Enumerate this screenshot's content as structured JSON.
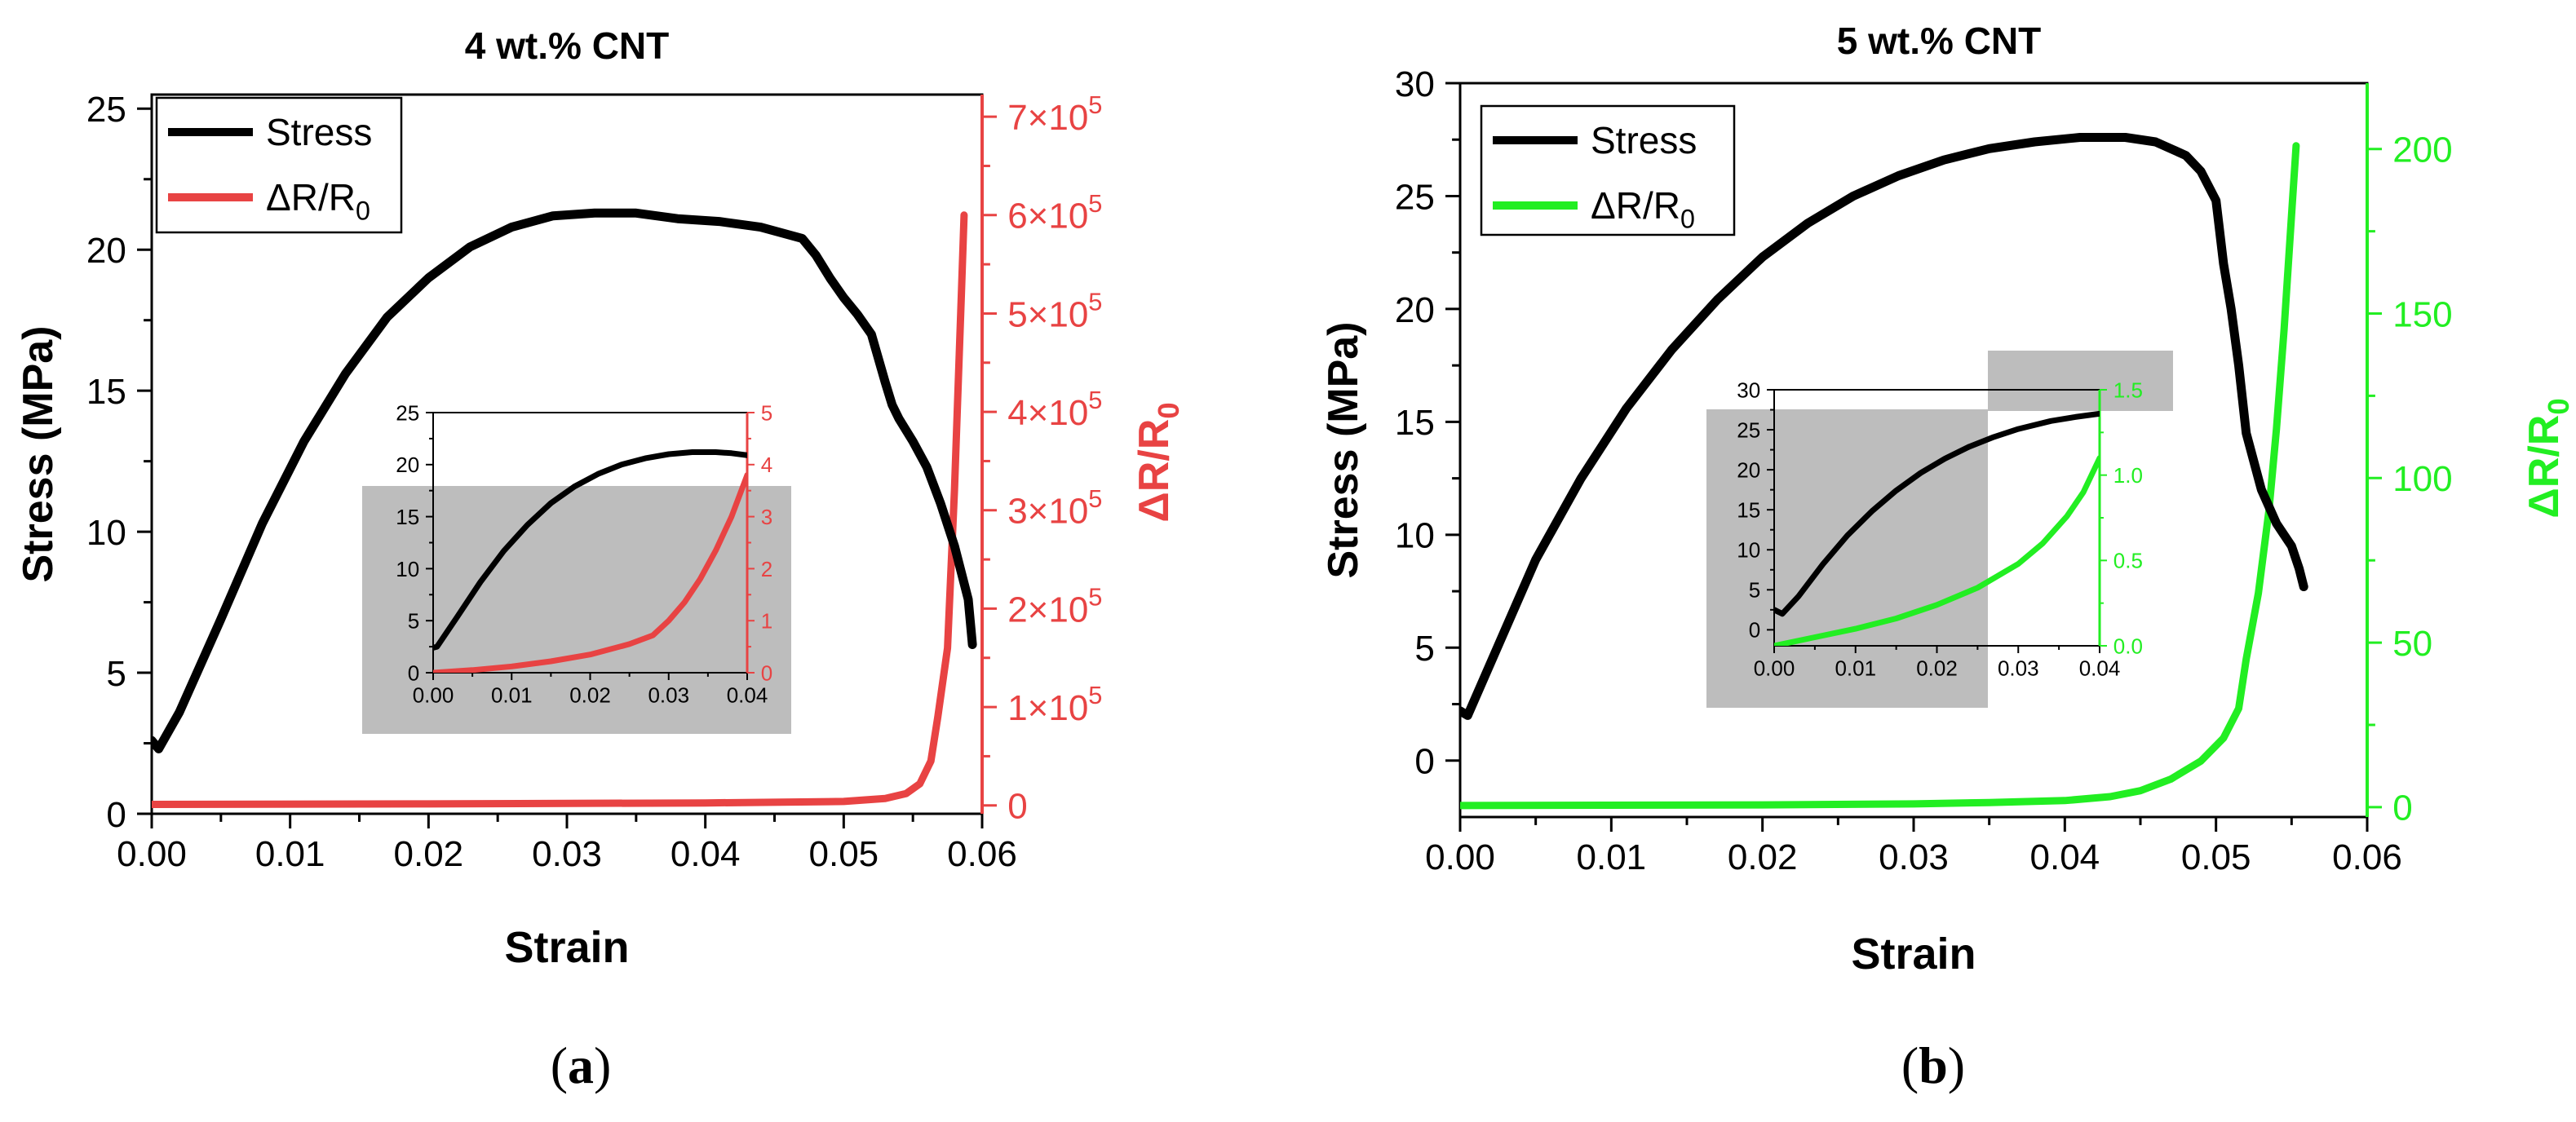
{
  "chart_data": [
    {
      "type": "line",
      "panel_label": "(a)",
      "title": "4 wt.% CNT",
      "xlabel": "Strain",
      "ylabel": "Stress (MPa)",
      "y2label": "ΔR/R0",
      "xlim": [
        0,
        0.06
      ],
      "ylim": [
        0,
        25.5
      ],
      "y2lim": [
        -8500,
        722500
      ],
      "xticks": [
        "0.00",
        "0.01",
        "0.02",
        "0.03",
        "0.04",
        "0.05",
        "0.06"
      ],
      "yticks": [
        "0",
        "5",
        "10",
        "15",
        "20",
        "25"
      ],
      "y2ticks": [
        "0",
        "1×10⁵",
        "2×10⁵",
        "3×10⁵",
        "4×10⁵",
        "5×10⁵",
        "6×10⁵",
        "7×10⁵"
      ],
      "legend": {
        "position": "top-left",
        "entries": [
          "Stress",
          "ΔR/R0"
        ]
      },
      "series": [
        {
          "name": "Stress",
          "color": "#000000",
          "axis": "left",
          "x": [
            0.0,
            0.0005,
            0.002,
            0.005,
            0.008,
            0.011,
            0.014,
            0.017,
            0.02,
            0.023,
            0.026,
            0.029,
            0.032,
            0.035,
            0.038,
            0.041,
            0.044,
            0.047,
            0.048,
            0.049,
            0.05,
            0.051,
            0.052,
            0.053,
            0.0535,
            0.054,
            0.055,
            0.056,
            0.057,
            0.058,
            0.059,
            0.0593
          ],
          "y": [
            2.6,
            2.3,
            3.6,
            6.9,
            10.3,
            13.2,
            15.6,
            17.6,
            19.0,
            20.1,
            20.8,
            21.2,
            21.3,
            21.3,
            21.1,
            21.0,
            20.8,
            20.4,
            19.8,
            19.0,
            18.3,
            17.7,
            17.0,
            15.3,
            14.5,
            14.0,
            13.2,
            12.3,
            11.0,
            9.5,
            7.6,
            6.0
          ]
        },
        {
          "name": "ΔR/R0",
          "color": "#e84343",
          "axis": "right",
          "x": [
            0.0,
            0.02,
            0.04,
            0.05,
            0.053,
            0.0545,
            0.0555,
            0.0563,
            0.0568,
            0.0575,
            0.058,
            0.0585,
            0.0587
          ],
          "y": [
            1000,
            1500,
            2500,
            4000,
            7000,
            12000,
            22000,
            45000,
            90000,
            160000,
            320000,
            520000,
            600000
          ]
        }
      ],
      "inset": {
        "xlim": [
          0,
          0.04
        ],
        "ylim": [
          0,
          25
        ],
        "y2lim": [
          0,
          5
        ],
        "xticks": [
          "0.00",
          "0.01",
          "0.02",
          "0.03",
          "0.04"
        ],
        "yticks": [
          "0",
          "5",
          "10",
          "15",
          "20",
          "25"
        ],
        "y2ticks": [
          "0",
          "1",
          "2",
          "3",
          "4",
          "5"
        ],
        "series": [
          {
            "name": "Stress",
            "color": "#000000",
            "axis": "left",
            "x": [
              0.0,
              0.0005,
              0.003,
              0.006,
              0.009,
              0.012,
              0.015,
              0.018,
              0.021,
              0.024,
              0.027,
              0.03,
              0.033,
              0.036,
              0.038,
              0.04
            ],
            "y": [
              2.4,
              2.5,
              5.3,
              8.7,
              11.7,
              14.2,
              16.3,
              17.9,
              19.1,
              20.0,
              20.6,
              21.0,
              21.2,
              21.2,
              21.1,
              20.9
            ]
          },
          {
            "name": "ΔR/R0",
            "color": "#e84343",
            "axis": "right",
            "x": [
              0.0,
              0.005,
              0.01,
              0.015,
              0.02,
              0.025,
              0.028,
              0.03,
              0.032,
              0.034,
              0.036,
              0.038,
              0.04
            ],
            "y": [
              0.0,
              0.05,
              0.12,
              0.22,
              0.35,
              0.55,
              0.72,
              1.0,
              1.35,
              1.8,
              2.35,
              3.0,
              3.8
            ]
          }
        ]
      }
    },
    {
      "type": "line",
      "panel_label": "(b)",
      "title": "5 wt.% CNT",
      "xlabel": "Strain",
      "ylabel": "Stress (MPa)",
      "y2label": "ΔR/R0",
      "xlim": [
        0,
        0.06
      ],
      "ylim": [
        -2.5,
        30
      ],
      "y2lim": [
        -3,
        220
      ],
      "xticks": [
        "0.00",
        "0.01",
        "0.02",
        "0.03",
        "0.04",
        "0.05",
        "0.06"
      ],
      "yticks": [
        "0",
        "5",
        "10",
        "15",
        "20",
        "25",
        "30"
      ],
      "y2ticks": [
        "0",
        "50",
        "100",
        "150",
        "200"
      ],
      "legend": {
        "position": "top-left",
        "entries": [
          "Stress",
          "ΔR/R0"
        ]
      },
      "series": [
        {
          "name": "Stress",
          "color": "#000000",
          "axis": "left",
          "x": [
            0.0,
            0.0005,
            0.002,
            0.005,
            0.008,
            0.011,
            0.014,
            0.017,
            0.02,
            0.023,
            0.026,
            0.029,
            0.032,
            0.035,
            0.038,
            0.041,
            0.044,
            0.046,
            0.048,
            0.049,
            0.05,
            0.0505,
            0.051,
            0.0515,
            0.052,
            0.053,
            0.054,
            0.055,
            0.0555,
            0.0558
          ],
          "y": [
            2.2,
            2.0,
            4.3,
            8.9,
            12.5,
            15.6,
            18.2,
            20.4,
            22.3,
            23.8,
            25.0,
            25.9,
            26.6,
            27.1,
            27.4,
            27.6,
            27.6,
            27.4,
            26.8,
            26.1,
            24.8,
            22.0,
            20.0,
            17.5,
            14.5,
            12.0,
            10.5,
            9.5,
            8.5,
            7.7
          ]
        },
        {
          "name": "ΔR/R0",
          "color": "#22ee22",
          "axis": "right",
          "x": [
            0.0,
            0.02,
            0.03,
            0.035,
            0.04,
            0.043,
            0.045,
            0.047,
            0.049,
            0.0505,
            0.0515,
            0.052,
            0.0528,
            0.0535,
            0.054,
            0.0545,
            0.055,
            0.0553
          ],
          "y": [
            0.5,
            0.7,
            1.0,
            1.4,
            2.0,
            3.2,
            5.0,
            8.5,
            14.0,
            21.0,
            30.0,
            45.0,
            65.0,
            90.0,
            115.0,
            145.0,
            180.0,
            201.0
          ]
        }
      ],
      "inset": {
        "xlim": [
          0,
          0.04
        ],
        "ylim": [
          -2,
          30
        ],
        "y2lim": [
          0,
          1.5
        ],
        "xticks": [
          "0.00",
          "0.01",
          "0.02",
          "0.03",
          "0.04"
        ],
        "yticks": [
          "0",
          "5",
          "10",
          "15",
          "20",
          "25",
          "30"
        ],
        "y2ticks": [
          "0.0",
          "0.5",
          "1.0",
          "1.5"
        ],
        "series": [
          {
            "name": "Stress",
            "color": "#000000",
            "axis": "left",
            "x": [
              0.0,
              0.001,
              0.003,
              0.006,
              0.009,
              0.012,
              0.015,
              0.018,
              0.021,
              0.024,
              0.027,
              0.03,
              0.034,
              0.037,
              0.04
            ],
            "y": [
              2.5,
              2.0,
              4.2,
              8.2,
              11.8,
              14.8,
              17.4,
              19.6,
              21.4,
              22.9,
              24.1,
              25.1,
              26.1,
              26.6,
              27.0
            ]
          },
          {
            "name": "ΔR/R0",
            "color": "#22ee22",
            "axis": "right",
            "x": [
              0.0,
              0.005,
              0.01,
              0.015,
              0.02,
              0.025,
              0.03,
              0.033,
              0.036,
              0.038,
              0.04
            ],
            "y": [
              0.0,
              0.05,
              0.1,
              0.16,
              0.24,
              0.34,
              0.48,
              0.6,
              0.76,
              0.9,
              1.1
            ]
          }
        ]
      }
    }
  ]
}
